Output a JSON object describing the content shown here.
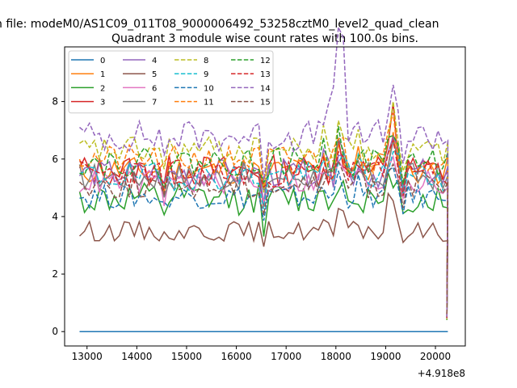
{
  "chart_data": {
    "type": "line",
    "suptitle": "n file: modeM0/AS1C09_011T08_9000006492_53258cztM0_level2_quad_clean",
    "title": "Quadrant 3 module wise count rates with 100.0s bins.",
    "xlabel": "",
    "ylabel": "",
    "offset_label": "+4.918e8",
    "x_offset": 491800000,
    "xlim": [
      12550,
      20600
    ],
    "ylim": [
      -0.5,
      9.9
    ],
    "x_ticks": [
      13000,
      14000,
      15000,
      16000,
      17000,
      18000,
      19000,
      20000
    ],
    "x_tick_labels": [
      "13000",
      "14000",
      "15000",
      "16000",
      "17000",
      "18000",
      "19000",
      "20000"
    ],
    "y_ticks": [
      0,
      2,
      4,
      6,
      8
    ],
    "y_tick_labels": [
      "0",
      "2",
      "4",
      "6",
      "8"
    ],
    "legend_position": "upper-left",
    "x_start": 12850,
    "x_step": 100,
    "n_points": 75,
    "series": [
      {
        "name": "0",
        "color": "#1f77b4",
        "dash": "solid",
        "flat": 0
      },
      {
        "name": "1",
        "color": "#ff7f0e",
        "dash": "solid",
        "base": 5.6,
        "amp": 0.35,
        "seed": 11
      },
      {
        "name": "2",
        "color": "#2ca02c",
        "dash": "solid",
        "base": 4.6,
        "amp": 0.4,
        "seed": 12
      },
      {
        "name": "3",
        "color": "#d62728",
        "dash": "solid",
        "base": 5.6,
        "amp": 0.4,
        "seed": 13
      },
      {
        "name": "4",
        "color": "#9467bd",
        "dash": "solid",
        "base": 5.5,
        "amp": 0.35,
        "seed": 14
      },
      {
        "name": "5",
        "color": "#8c564b",
        "dash": "solid",
        "base": 3.5,
        "amp": 0.25,
        "seed": 15
      },
      {
        "name": "6",
        "color": "#e377c2",
        "dash": "solid",
        "base": 5.2,
        "amp": 0.3,
        "seed": 16
      },
      {
        "name": "7",
        "color": "#7f7f7f",
        "dash": "solid",
        "base": 5.4,
        "amp": 0.35,
        "seed": 17
      },
      {
        "name": "8",
        "color": "#bcbd22",
        "dash": "dashed",
        "base": 6.3,
        "amp": 0.35,
        "seed": 18
      },
      {
        "name": "9",
        "color": "#17becf",
        "dash": "dashed",
        "base": 5.4,
        "amp": 0.35,
        "seed": 19
      },
      {
        "name": "10",
        "color": "#1f77b4",
        "dash": "dashed",
        "base": 4.7,
        "amp": 0.3,
        "seed": 20
      },
      {
        "name": "11",
        "color": "#ff7f0e",
        "dash": "dashed",
        "base": 6.0,
        "amp": 0.35,
        "seed": 21
      },
      {
        "name": "12",
        "color": "#2ca02c",
        "dash": "dashed",
        "base": 5.9,
        "amp": 0.35,
        "seed": 22
      },
      {
        "name": "13",
        "color": "#d62728",
        "dash": "dashed",
        "base": 5.5,
        "amp": 0.35,
        "seed": 23
      },
      {
        "name": "14",
        "color": "#9467bd",
        "dash": "dashed",
        "base": 6.8,
        "amp": 0.4,
        "seed": 24
      },
      {
        "name": "15",
        "color": "#8c564b",
        "dash": "dashed",
        "base": 5.1,
        "amp": 0.35,
        "seed": 25
      }
    ]
  }
}
